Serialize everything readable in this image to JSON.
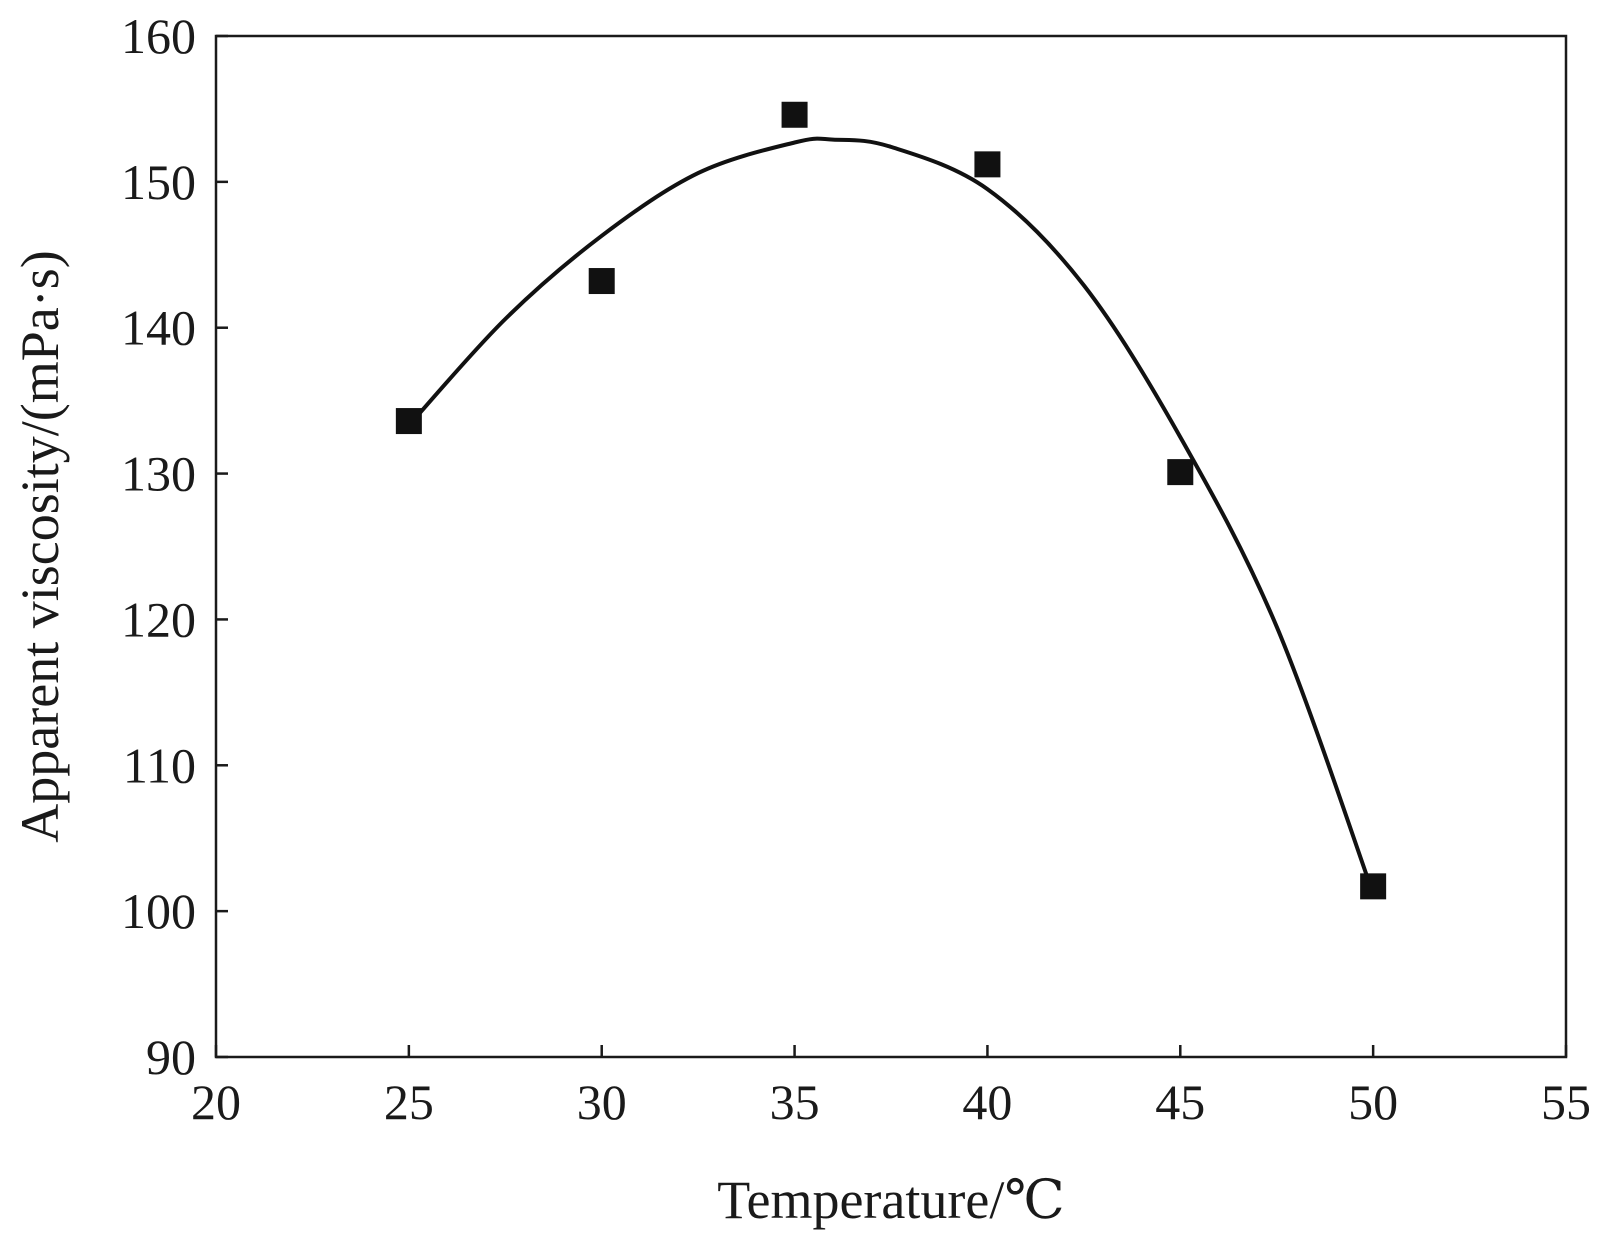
{
  "chart_data": {
    "type": "scatter",
    "xlabel": "Temperature/℃",
    "ylabel": "Apparent viscosity/(mPa·s)",
    "xlim": [
      20,
      55
    ],
    "ylim": [
      90,
      160
    ],
    "xticks": [
      20,
      25,
      30,
      35,
      40,
      45,
      50,
      55
    ],
    "yticks": [
      90,
      100,
      110,
      120,
      130,
      140,
      150,
      160
    ],
    "grid": false,
    "legend": "none",
    "series": [
      {
        "kind": "points",
        "marker": "filled-square",
        "color": "#111111",
        "x": [
          25,
          30,
          35,
          40,
          45,
          50
        ],
        "y": [
          133.6,
          143.2,
          154.6,
          151.2,
          130.1,
          101.7
        ]
      },
      {
        "kind": "fit-curve",
        "color": "#111111",
        "x": [
          25,
          27.5,
          30,
          32.5,
          35,
          36,
          37.5,
          40,
          42.5,
          45,
          47.5,
          50
        ],
        "y": [
          133.3,
          140.6,
          146.3,
          150.6,
          152.7,
          152.9,
          152.4,
          149.5,
          142.9,
          132.5,
          119.5,
          101.2
        ]
      }
    ]
  }
}
